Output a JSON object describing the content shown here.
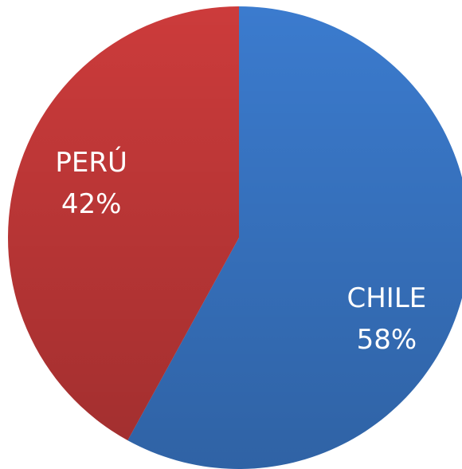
{
  "chart_data": {
    "type": "pie",
    "categories": [
      "CHILE",
      "PERÚ"
    ],
    "values": [
      58,
      42
    ],
    "value_labels": [
      "58%",
      "42%"
    ],
    "colors": [
      "#3b7bce",
      "#cc3b3b"
    ]
  }
}
